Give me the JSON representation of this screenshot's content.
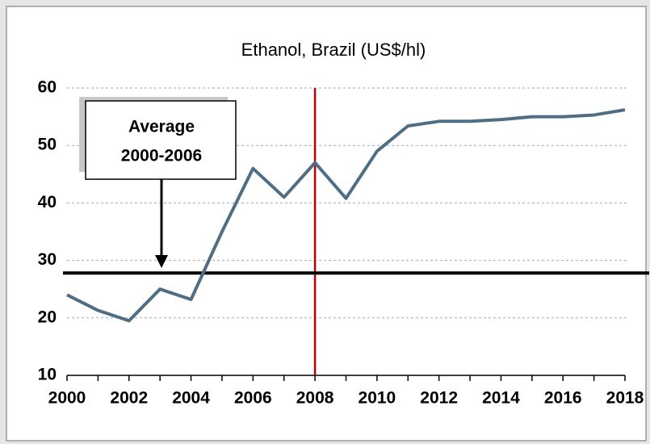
{
  "chart_data": {
    "type": "line",
    "title": "Ethanol, Brazil (US$/hl)",
    "x": [
      2000,
      2001,
      2002,
      2003,
      2004,
      2005,
      2006,
      2007,
      2008,
      2009,
      2010,
      2011,
      2012,
      2013,
      2014,
      2015,
      2016,
      2017,
      2018
    ],
    "series": [
      {
        "color": "#4f6e84",
        "values": [
          24,
          21.3,
          19.5,
          25,
          23.2,
          35,
          46,
          41,
          47,
          40.8,
          49,
          53.4,
          54.2,
          54.2,
          54.5,
          55,
          55,
          55.3,
          56.2
        ]
      }
    ],
    "xlim": [
      2000,
      2018
    ],
    "xticks": [
      2000,
      2002,
      2004,
      2006,
      2008,
      2010,
      2012,
      2014,
      2016,
      2018
    ],
    "ylim": [
      10,
      60
    ],
    "yticks": [
      10,
      20,
      30,
      40,
      50,
      60
    ],
    "grid": true,
    "average_line": {
      "value": 27.8,
      "color": "#000000"
    },
    "marker_line": {
      "x": 2008,
      "color": "#c00000"
    },
    "annotation": [
      "Average",
      "2000-2006"
    ]
  }
}
